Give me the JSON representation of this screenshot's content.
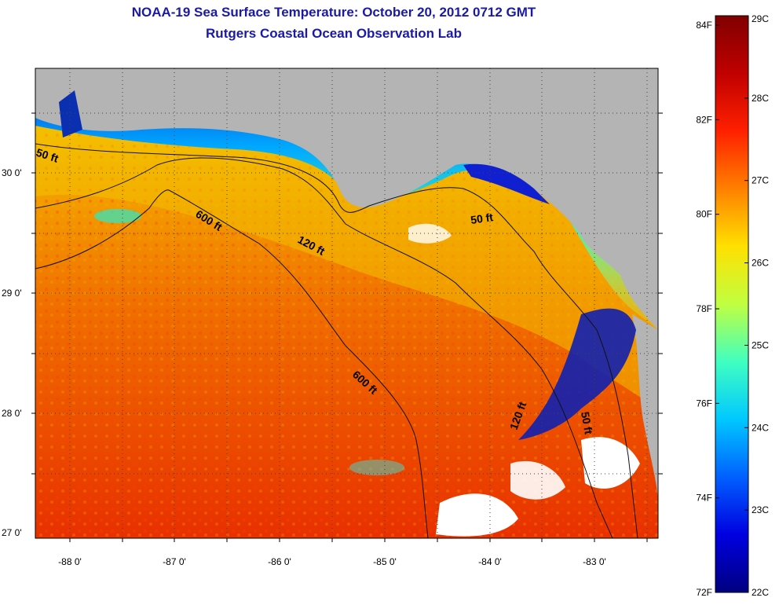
{
  "title": "NOAA-19 Sea Surface Temperature:  October 20, 2012 0712 GMT",
  "subtitle": "Rutgers Coastal Ocean Observation Lab",
  "map": {
    "latitude_labels": [
      "30 0'",
      "29 0'",
      "28 0'",
      "27 0'"
    ],
    "longitude_labels": [
      "-88 0'",
      "-87 0'",
      "-86 0'",
      "-85 0'",
      "-84 0'",
      "-83 0'"
    ],
    "contour_labels": [
      "50 ft",
      "600 ft",
      "120 ft",
      "50 ft",
      "600 ft",
      "120 ft",
      "50 ft"
    ],
    "colors": {
      "land": "#b4b4b4",
      "cloud": "#ffffff",
      "grid": "#555555"
    }
  },
  "colorbar": {
    "celsius_labels": [
      "29C",
      "28C",
      "27C",
      "26C",
      "25C",
      "24C",
      "23C",
      "22C"
    ],
    "fahrenheit_labels": [
      "84F",
      "82F",
      "80F",
      "78F",
      "76F",
      "74F",
      "72F"
    ],
    "celsius_range": [
      22,
      29
    ],
    "fahrenheit_range": [
      72,
      84.2
    ],
    "gradient": [
      "#000080",
      "#0000e0",
      "#0060ff",
      "#00c8ff",
      "#40ffc0",
      "#c0ff40",
      "#ffe000",
      "#ff8000",
      "#ff2000",
      "#c00000",
      "#800000"
    ]
  }
}
